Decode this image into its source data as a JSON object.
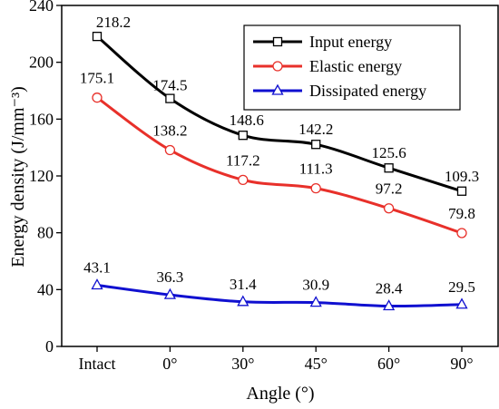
{
  "chart_data": {
    "type": "line",
    "xlabel": "Angle (°)",
    "ylabel": "Energy density (J/mm⁻³)",
    "categories": [
      "Intact",
      "0°",
      "30°",
      "45°",
      "60°",
      "90°"
    ],
    "ylim": [
      0,
      240
    ],
    "yticks": [
      "0",
      "40",
      "80",
      "120",
      "160",
      "200",
      "240"
    ],
    "grid": false,
    "legend_position": "top-right",
    "series": [
      {
        "name": "Input energy",
        "color": "#000000",
        "marker": "square",
        "values": [
          218.2,
          174.5,
          148.6,
          142.2,
          125.6,
          109.3
        ],
        "labels": [
          "218.2",
          "174.5",
          "148.6",
          "142.2",
          "125.6",
          "109.3"
        ]
      },
      {
        "name": "Elastic energy",
        "color": "#e8302a",
        "marker": "circle",
        "values": [
          175.1,
          138.2,
          117.2,
          111.3,
          97.2,
          79.8
        ],
        "labels": [
          "175.1",
          "138.2",
          "117.2",
          "111.3",
          "97.2",
          "79.8"
        ]
      },
      {
        "name": "Dissipated energy",
        "color": "#1010d0",
        "marker": "triangle",
        "values": [
          43.1,
          36.3,
          31.4,
          30.9,
          28.4,
          29.5
        ],
        "labels": [
          "43.1",
          "36.3",
          "31.4",
          "30.9",
          "28.4",
          "29.5"
        ]
      }
    ]
  }
}
